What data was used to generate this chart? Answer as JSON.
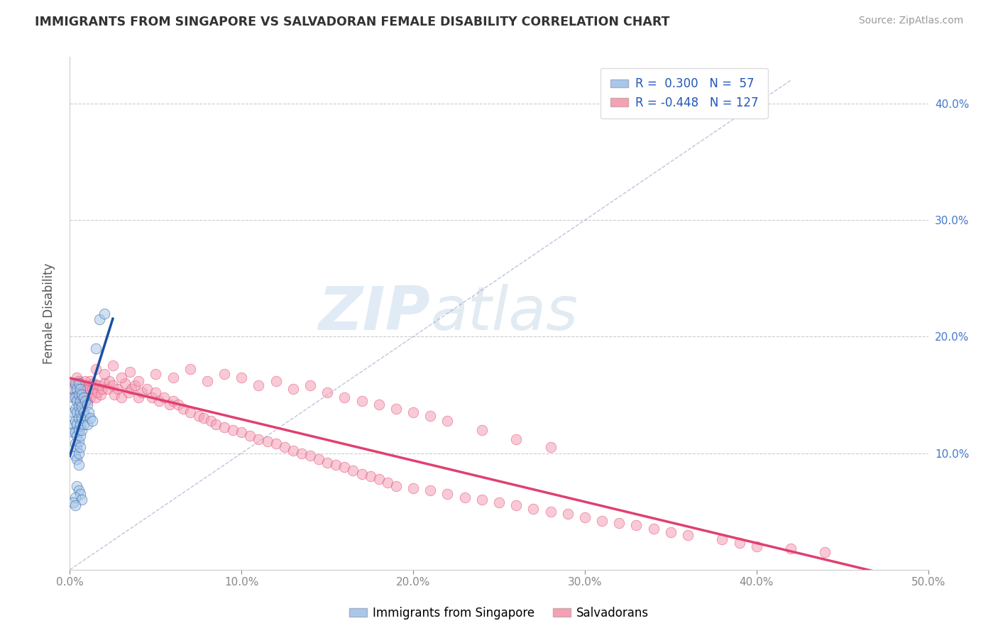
{
  "title": "IMMIGRANTS FROM SINGAPORE VS SALVADORAN FEMALE DISABILITY CORRELATION CHART",
  "source": "Source: ZipAtlas.com",
  "ylabel": "Female Disability",
  "legend_label1": "Immigrants from Singapore",
  "legend_label2": "Salvadorans",
  "r1": 0.3,
  "n1": 57,
  "r2": -0.448,
  "n2": 127,
  "xlim": [
    0.0,
    0.5
  ],
  "ylim": [
    0.0,
    0.44
  ],
  "color_blue": "#a8c8e8",
  "color_pink": "#f4a0b5",
  "line_blue": "#1a4fa0",
  "line_pink": "#e04070",
  "scatter_alpha": 0.55,
  "watermark_zip": "ZIP",
  "watermark_atlas": "atlas",
  "blue_points_x": [
    0.002,
    0.002,
    0.002,
    0.002,
    0.002,
    0.003,
    0.003,
    0.003,
    0.003,
    0.003,
    0.003,
    0.003,
    0.004,
    0.004,
    0.004,
    0.004,
    0.004,
    0.004,
    0.004,
    0.005,
    0.005,
    0.005,
    0.005,
    0.005,
    0.005,
    0.005,
    0.005,
    0.006,
    0.006,
    0.006,
    0.006,
    0.006,
    0.006,
    0.007,
    0.007,
    0.007,
    0.007,
    0.008,
    0.008,
    0.008,
    0.009,
    0.009,
    0.01,
    0.01,
    0.011,
    0.012,
    0.013,
    0.015,
    0.017,
    0.02,
    0.004,
    0.005,
    0.006,
    0.003,
    0.007,
    0.002,
    0.003
  ],
  "blue_points_y": [
    0.155,
    0.148,
    0.135,
    0.125,
    0.118,
    0.16,
    0.148,
    0.138,
    0.128,
    0.118,
    0.108,
    0.098,
    0.155,
    0.145,
    0.135,
    0.125,
    0.115,
    0.105,
    0.095,
    0.16,
    0.15,
    0.14,
    0.13,
    0.12,
    0.11,
    0.1,
    0.09,
    0.155,
    0.145,
    0.135,
    0.125,
    0.115,
    0.105,
    0.15,
    0.14,
    0.13,
    0.12,
    0.148,
    0.135,
    0.125,
    0.145,
    0.132,
    0.142,
    0.125,
    0.135,
    0.13,
    0.128,
    0.19,
    0.215,
    0.22,
    0.072,
    0.068,
    0.065,
    0.062,
    0.06,
    0.058,
    0.055
  ],
  "pink_points_x": [
    0.002,
    0.003,
    0.003,
    0.004,
    0.004,
    0.005,
    0.005,
    0.005,
    0.006,
    0.006,
    0.006,
    0.007,
    0.007,
    0.008,
    0.008,
    0.009,
    0.009,
    0.01,
    0.01,
    0.011,
    0.012,
    0.012,
    0.013,
    0.014,
    0.015,
    0.015,
    0.016,
    0.017,
    0.018,
    0.019,
    0.02,
    0.022,
    0.023,
    0.025,
    0.026,
    0.028,
    0.03,
    0.032,
    0.034,
    0.036,
    0.038,
    0.04,
    0.042,
    0.045,
    0.048,
    0.05,
    0.052,
    0.055,
    0.058,
    0.06,
    0.063,
    0.066,
    0.07,
    0.075,
    0.078,
    0.082,
    0.085,
    0.09,
    0.095,
    0.1,
    0.105,
    0.11,
    0.115,
    0.12,
    0.125,
    0.13,
    0.135,
    0.14,
    0.145,
    0.15,
    0.155,
    0.16,
    0.165,
    0.17,
    0.175,
    0.18,
    0.185,
    0.19,
    0.2,
    0.21,
    0.22,
    0.23,
    0.24,
    0.25,
    0.26,
    0.27,
    0.28,
    0.29,
    0.3,
    0.31,
    0.32,
    0.33,
    0.34,
    0.35,
    0.36,
    0.38,
    0.39,
    0.4,
    0.42,
    0.44,
    0.015,
    0.02,
    0.025,
    0.03,
    0.035,
    0.04,
    0.05,
    0.06,
    0.07,
    0.08,
    0.09,
    0.1,
    0.11,
    0.12,
    0.13,
    0.14,
    0.15,
    0.16,
    0.17,
    0.18,
    0.19,
    0.2,
    0.21,
    0.22,
    0.24,
    0.26,
    0.28
  ],
  "pink_points_y": [
    0.16,
    0.158,
    0.152,
    0.165,
    0.148,
    0.162,
    0.155,
    0.145,
    0.16,
    0.15,
    0.142,
    0.158,
    0.148,
    0.155,
    0.145,
    0.162,
    0.148,
    0.158,
    0.145,
    0.155,
    0.162,
    0.148,
    0.155,
    0.16,
    0.158,
    0.148,
    0.152,
    0.158,
    0.15,
    0.155,
    0.16,
    0.155,
    0.162,
    0.158,
    0.15,
    0.155,
    0.148,
    0.16,
    0.152,
    0.155,
    0.158,
    0.148,
    0.152,
    0.155,
    0.148,
    0.152,
    0.145,
    0.148,
    0.142,
    0.145,
    0.142,
    0.138,
    0.135,
    0.132,
    0.13,
    0.128,
    0.125,
    0.122,
    0.12,
    0.118,
    0.115,
    0.112,
    0.11,
    0.108,
    0.105,
    0.102,
    0.1,
    0.098,
    0.095,
    0.092,
    0.09,
    0.088,
    0.085,
    0.082,
    0.08,
    0.078,
    0.075,
    0.072,
    0.07,
    0.068,
    0.065,
    0.062,
    0.06,
    0.058,
    0.055,
    0.052,
    0.05,
    0.048,
    0.045,
    0.042,
    0.04,
    0.038,
    0.035,
    0.032,
    0.03,
    0.026,
    0.023,
    0.02,
    0.018,
    0.015,
    0.172,
    0.168,
    0.175,
    0.165,
    0.17,
    0.162,
    0.168,
    0.165,
    0.172,
    0.162,
    0.168,
    0.165,
    0.158,
    0.162,
    0.155,
    0.158,
    0.152,
    0.148,
    0.145,
    0.142,
    0.138,
    0.135,
    0.132,
    0.128,
    0.12,
    0.112,
    0.105
  ]
}
